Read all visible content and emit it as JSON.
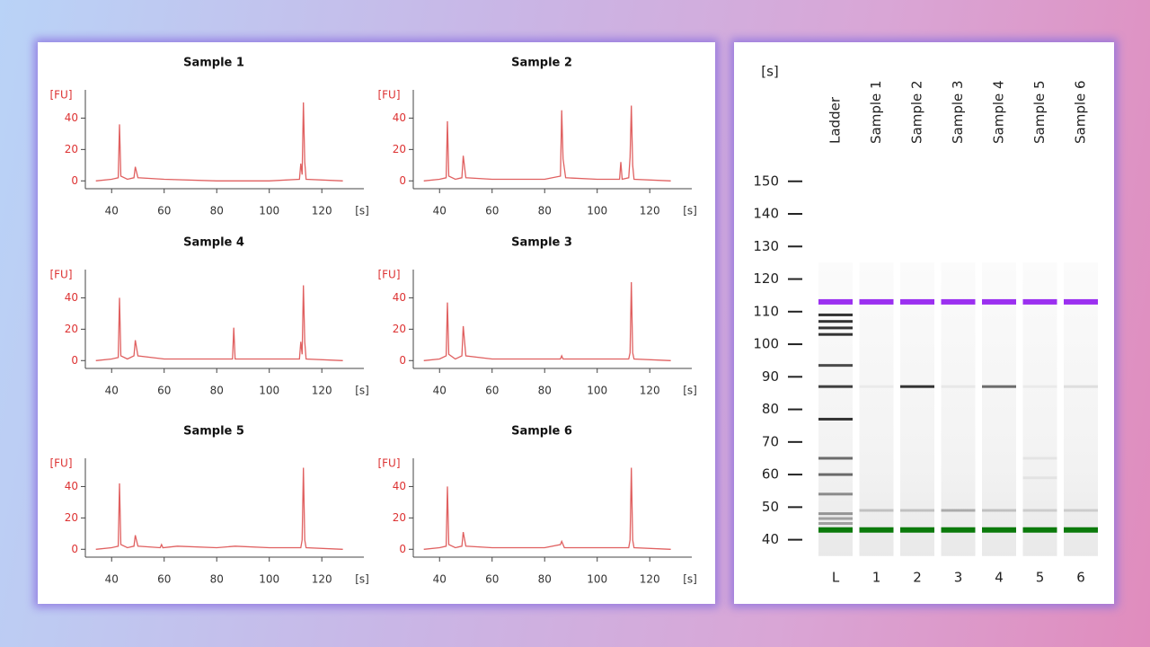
{
  "chart_data": [
    {
      "type": "line",
      "title": "Sample 1",
      "y_label": "[FU]",
      "x_label": "[s]",
      "xlim": [
        30,
        136
      ],
      "ylim": [
        -5,
        58
      ],
      "xticks": [
        40,
        60,
        80,
        100,
        120
      ],
      "yticks": [
        0,
        20,
        40
      ],
      "color": "#e06060",
      "x": [
        34,
        40,
        42.5,
        43,
        43.5,
        46,
        48.5,
        49,
        50,
        60,
        80,
        100,
        111.5,
        112,
        112.5,
        113,
        113.5,
        114,
        128
      ],
      "values": [
        0,
        1,
        2,
        36,
        3,
        1,
        2,
        9,
        2,
        1,
        0,
        0,
        1,
        11,
        4,
        50,
        12,
        1,
        0
      ]
    },
    {
      "type": "line",
      "title": "Sample 2",
      "y_label": "[FU]",
      "x_label": "[s]",
      "xlim": [
        30,
        136
      ],
      "ylim": [
        -5,
        58
      ],
      "xticks": [
        40,
        60,
        80,
        100,
        120
      ],
      "yticks": [
        0,
        20,
        40
      ],
      "color": "#e06060",
      "x": [
        34,
        40,
        42.5,
        43,
        43.5,
        46,
        48.5,
        49,
        50,
        60,
        80,
        86,
        86.5,
        87,
        88,
        100,
        108.5,
        109,
        109.5,
        112,
        112.5,
        113,
        113.5,
        114,
        128
      ],
      "values": [
        0,
        1,
        2,
        38,
        3,
        1,
        2,
        16,
        2,
        1,
        1,
        3,
        45,
        14,
        2,
        1,
        1,
        12,
        1,
        2,
        15,
        48,
        10,
        1,
        0
      ]
    },
    {
      "type": "line",
      "title": "Sample 4",
      "y_label": "[FU]",
      "x_label": "[s]",
      "xlim": [
        30,
        136
      ],
      "ylim": [
        -5,
        58
      ],
      "xticks": [
        40,
        60,
        80,
        100,
        120
      ],
      "yticks": [
        0,
        20,
        40
      ],
      "color": "#e06060",
      "x": [
        34,
        40,
        42.5,
        43,
        43.5,
        46,
        48.5,
        49,
        50,
        60,
        80,
        86,
        86.5,
        87,
        100,
        111.5,
        112,
        112.5,
        113,
        113.5,
        114,
        128
      ],
      "values": [
        0,
        1,
        2,
        40,
        3,
        1,
        3,
        13,
        3,
        1,
        1,
        1,
        21,
        1,
        1,
        1,
        12,
        4,
        48,
        12,
        1,
        0
      ]
    },
    {
      "type": "line",
      "title": "Sample 3",
      "y_label": "[FU]",
      "x_label": "[s]",
      "xlim": [
        30,
        136
      ],
      "ylim": [
        -5,
        58
      ],
      "xticks": [
        40,
        60,
        80,
        100,
        120
      ],
      "yticks": [
        0,
        20,
        40
      ],
      "color": "#e06060",
      "x": [
        34,
        40,
        42.5,
        43,
        43.5,
        46,
        48.5,
        49,
        50,
        60,
        80,
        86,
        86.5,
        87,
        100,
        112,
        112.5,
        113,
        113.5,
        114,
        128
      ],
      "values": [
        0,
        1,
        3,
        37,
        4,
        1,
        3,
        22,
        3,
        1,
        1,
        1,
        3,
        1,
        1,
        1,
        5,
        50,
        5,
        1,
        0
      ]
    },
    {
      "type": "line",
      "title": "Sample 5",
      "y_label": "[FU]",
      "x_label": "[s]",
      "xlim": [
        30,
        136
      ],
      "ylim": [
        -5,
        58
      ],
      "xticks": [
        40,
        60,
        80,
        100,
        120
      ],
      "yticks": [
        0,
        20,
        40
      ],
      "color": "#e06060",
      "x": [
        34,
        40,
        42.5,
        43,
        43.5,
        46,
        48.5,
        49,
        50,
        58.5,
        59,
        59.5,
        65,
        80,
        87,
        100,
        112,
        112.5,
        113,
        113.5,
        114,
        128
      ],
      "values": [
        0,
        1,
        2,
        42,
        3,
        1,
        2,
        9,
        2,
        1,
        3,
        1,
        2,
        1,
        2,
        1,
        1,
        6,
        52,
        6,
        1,
        0
      ]
    },
    {
      "type": "line",
      "title": "Sample 6",
      "y_label": "[FU]",
      "x_label": "[s]",
      "xlim": [
        30,
        136
      ],
      "ylim": [
        -5,
        58
      ],
      "xticks": [
        40,
        60,
        80,
        100,
        120
      ],
      "yticks": [
        0,
        20,
        40
      ],
      "color": "#e06060",
      "x": [
        34,
        40,
        42.5,
        43,
        43.5,
        46,
        48.5,
        49,
        50,
        60,
        80,
        86,
        86.5,
        87.5,
        100,
        112,
        112.5,
        113,
        113.5,
        114,
        128
      ],
      "values": [
        0,
        1,
        2,
        40,
        3,
        1,
        2,
        11,
        2,
        1,
        1,
        3,
        5,
        1,
        1,
        1,
        6,
        52,
        6,
        1,
        0
      ]
    },
    {
      "type": "gel",
      "y_label": "[s]",
      "ylim": [
        33,
        156
      ],
      "yticks": [
        40,
        50,
        60,
        70,
        80,
        90,
        100,
        110,
        120,
        130,
        140,
        150
      ],
      "markers": [
        {
          "value": 43,
          "color": "#0b7a0b"
        },
        {
          "value": 113,
          "color": "#9b30f0"
        }
      ],
      "lanes": [
        {
          "name": "Ladder",
          "label": "L",
          "bands": [
            45,
            46.5,
            48,
            54,
            60,
            65,
            77,
            87,
            93.5,
            103,
            105,
            107,
            109
          ],
          "intensities": [
            0.35,
            0.35,
            0.4,
            0.45,
            0.6,
            0.6,
            0.85,
            0.8,
            0.75,
            0.85,
            0.85,
            0.85,
            0.85
          ]
        },
        {
          "name": "Sample 1",
          "label": "1",
          "bands": [
            49,
            87
          ],
          "intensities": [
            0.2,
            0.05
          ]
        },
        {
          "name": "Sample 2",
          "label": "2",
          "bands": [
            49,
            87
          ],
          "intensities": [
            0.2,
            0.85
          ]
        },
        {
          "name": "Sample 3",
          "label": "3",
          "bands": [
            49,
            87
          ],
          "intensities": [
            0.3,
            0.06
          ]
        },
        {
          "name": "Sample 4",
          "label": "4",
          "bands": [
            49,
            87
          ],
          "intensities": [
            0.2,
            0.6
          ]
        },
        {
          "name": "Sample 5",
          "label": "5",
          "bands": [
            49,
            59,
            65,
            87
          ],
          "intensities": [
            0.15,
            0.06,
            0.06,
            0.05
          ]
        },
        {
          "name": "Sample 6",
          "label": "6",
          "bands": [
            49,
            87
          ],
          "intensities": [
            0.15,
            0.1
          ]
        }
      ]
    }
  ]
}
